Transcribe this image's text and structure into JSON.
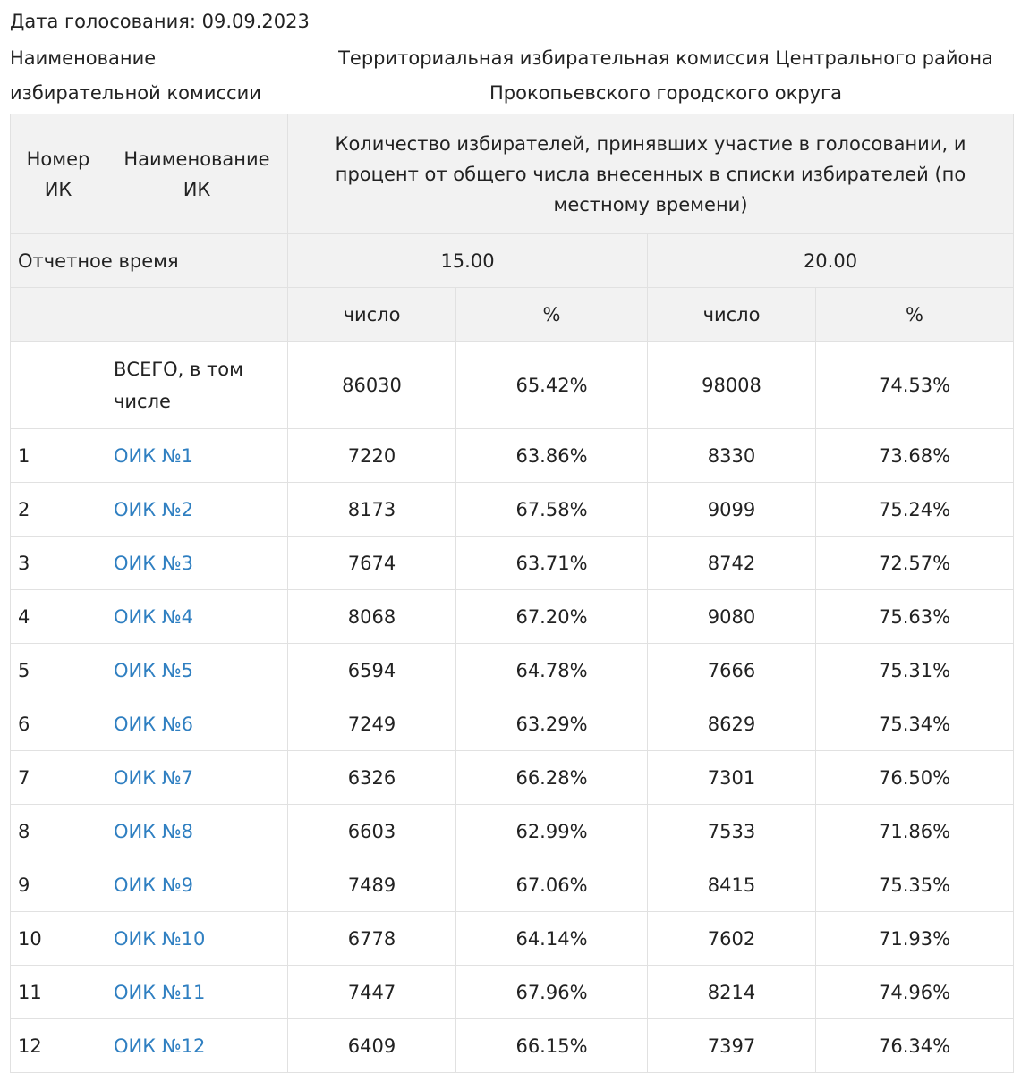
{
  "header": {
    "vote_date": "Дата голосования:  09.09.2023",
    "commission_label": "Наименование избирательной комиссии",
    "commission_value": "Территориальная избирательная комиссия Центрального района Прокопьевского городского округа"
  },
  "table": {
    "col_number": "Номер ИК",
    "col_name": "Наименование ИК",
    "col_turnout": "Количество избирателей, принявших участие в голосовании, и процент от общего числа внесенных в списки избирателей (по местному времени)",
    "report_time_label": "Отчетное время",
    "time_1": "15.00",
    "time_2": "20.00",
    "unit_count": "число",
    "unit_percent": "%",
    "total": {
      "label": "ВСЕГО, в том числе",
      "c1": "86030",
      "p1": "65.42%",
      "c2": "98008",
      "p2": "74.53%"
    },
    "rows": [
      {
        "num": "1",
        "name": "ОИК №1",
        "c1": "7220",
        "p1": "63.86%",
        "c2": "8330",
        "p2": "73.68%"
      },
      {
        "num": "2",
        "name": "ОИК №2",
        "c1": "8173",
        "p1": "67.58%",
        "c2": "9099",
        "p2": "75.24%"
      },
      {
        "num": "3",
        "name": "ОИК №3",
        "c1": "7674",
        "p1": "63.71%",
        "c2": "8742",
        "p2": "72.57%"
      },
      {
        "num": "4",
        "name": "ОИК №4",
        "c1": "8068",
        "p1": "67.20%",
        "c2": "9080",
        "p2": "75.63%"
      },
      {
        "num": "5",
        "name": "ОИК №5",
        "c1": "6594",
        "p1": "64.78%",
        "c2": "7666",
        "p2": "75.31%"
      },
      {
        "num": "6",
        "name": "ОИК №6",
        "c1": "7249",
        "p1": "63.29%",
        "c2": "8629",
        "p2": "75.34%"
      },
      {
        "num": "7",
        "name": "ОИК №7",
        "c1": "6326",
        "p1": "66.28%",
        "c2": "7301",
        "p2": "76.50%"
      },
      {
        "num": "8",
        "name": "ОИК №8",
        "c1": "6603",
        "p1": "62.99%",
        "c2": "7533",
        "p2": "71.86%"
      },
      {
        "num": "9",
        "name": "ОИК №9",
        "c1": "7489",
        "p1": "67.06%",
        "c2": "8415",
        "p2": "75.35%"
      },
      {
        "num": "10",
        "name": "ОИК №10",
        "c1": "6778",
        "p1": "64.14%",
        "c2": "7602",
        "p2": "71.93%"
      },
      {
        "num": "11",
        "name": "ОИК №11",
        "c1": "7447",
        "p1": "67.96%",
        "c2": "8214",
        "p2": "74.96%"
      },
      {
        "num": "12",
        "name": "ОИК №12",
        "c1": "6409",
        "p1": "66.15%",
        "c2": "7397",
        "p2": "76.34%"
      }
    ]
  }
}
